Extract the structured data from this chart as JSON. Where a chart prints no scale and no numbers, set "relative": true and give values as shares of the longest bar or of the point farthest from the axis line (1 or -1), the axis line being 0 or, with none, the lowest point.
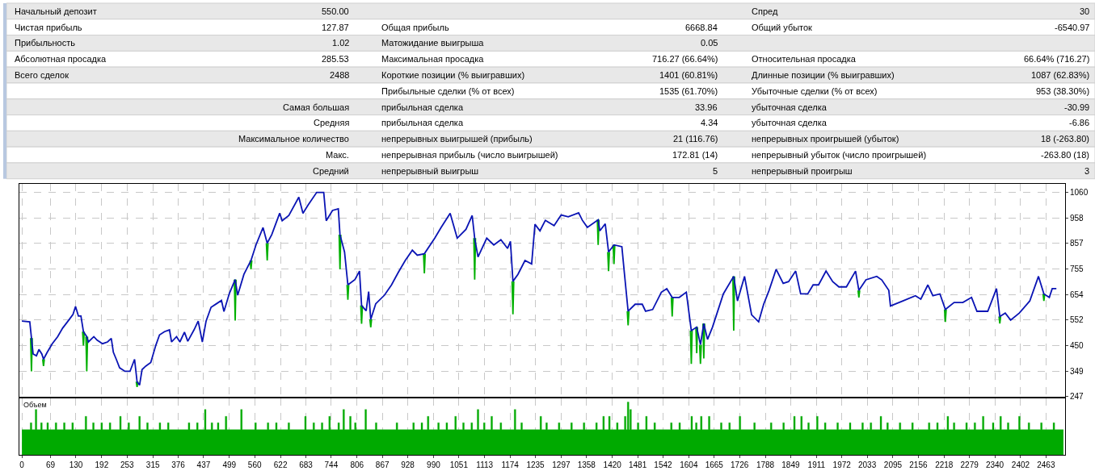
{
  "chart_data": [
    {
      "type": "other",
      "annotations": [
        "Начальный депозит",
        "550.00",
        "Спред",
        "30",
        "Чистая прибыль",
        "127.87",
        "Общая прибыль",
        "6668.84",
        "Общий убыток",
        "-6540.97",
        "Прибыльность",
        "1.02",
        "Матожидание выигрыша",
        "0.05",
        "Абсолютная просадка",
        "285.53",
        "Максимальная просадка",
        "716.27 (66.64%)",
        "Относительная просадка",
        "66.64% (716.27)",
        "Всего сделок",
        "2488",
        "Короткие позиции (% выигравших)",
        "1401 (60.81%)",
        "Длинные позиции (% выигравших)",
        "1087 (62.83%)",
        "Прибыльные сделки (% от всех)",
        "1535 (61.70%)",
        "Убыточные сделки (% от всех)",
        "953 (38.30%)",
        "Самая большая",
        "прибыльная сделка",
        "33.96",
        "убыточная сделка",
        "-30.99",
        "Средняя",
        "прибыльная сделка",
        "4.34",
        "убыточная сделка",
        "-6.86",
        "Максимальное количество",
        "непрерывных выигрышей (прибыль)",
        "21 (116.76)",
        "непрерывных проигрышей (убыток)",
        "18 (-263.80)",
        "Макс.",
        "непрерывная прибыль (число выигрышей)",
        "172.81 (14)",
        "непрерывный убыток (число проигрышей)",
        "-263.80 (18)",
        "Средний",
        "непрерывный выигрыш",
        "5",
        "непрерывный проигрыш",
        "3"
      ]
    },
    {
      "type": "line",
      "xlim": [
        -6,
        2509
      ],
      "ylim": [
        247,
        1095
      ],
      "xticks": [
        0,
        69,
        130,
        192,
        253,
        315,
        376,
        437,
        499,
        560,
        622,
        683,
        744,
        806,
        867,
        928,
        990,
        1051,
        1113,
        1174,
        1235,
        1297,
        1358,
        1420,
        1481,
        1542,
        1604,
        1665,
        1726,
        1788,
        1849,
        1911,
        1972,
        2033,
        2095,
        2156,
        2218,
        2279,
        2340,
        2402,
        2463
      ],
      "yticks": [
        247,
        349,
        450,
        552,
        654,
        755,
        857,
        958,
        1060
      ],
      "grid": true,
      "tick_labels": "y",
      "series": [
        {
          "color": "#00b000",
          "x": [
            21,
            23,
            25,
            null,
            50,
            52,
            54,
            null,
            146,
            148,
            150,
            null,
            154,
            156,
            158,
            null,
            275,
            277,
            279,
            null,
            511,
            513,
            515,
            null,
            549,
            551,
            553,
            null,
            588,
            590,
            592,
            null,
            763,
            765,
            767,
            null,
            782,
            784,
            786,
            null,
            815,
            817,
            819,
            null,
            837,
            839,
            841,
            null,
            966,
            968,
            970,
            null,
            1087,
            1089,
            1091,
            null,
            1179,
            1181,
            1183,
            null,
            1384,
            1386,
            1388,
            null,
            1409,
            1411,
            1413,
            null,
            1422,
            1424,
            1426,
            null,
            1456,
            1458,
            1460,
            null,
            1562,
            1564,
            1566,
            null,
            1608,
            1610,
            1612,
            null,
            1621,
            1623,
            1625,
            null,
            1630,
            1632,
            1634,
            null,
            1638,
            1640,
            1642,
            null,
            1710,
            1712,
            1714,
            null,
            2011,
            2013,
            2015,
            null,
            2219,
            2221,
            2223,
            null,
            2350,
            2352,
            2354,
            null,
            2456,
            2458,
            2460,
            null
          ],
          "values": [
            480,
            348,
            480,
            null,
            396,
            369,
            396,
            null,
            506,
            451,
            506,
            null,
            486,
            348,
            486,
            null,
            307,
            286,
            307,
            null,
            713,
            550,
            713,
            null,
            789,
            754,
            789,
            null,
            858,
            789,
            858,
            null,
            892,
            754,
            892,
            null,
            692,
            633,
            692,
            null,
            610,
            537,
            610,
            null,
            555,
            523,
            555,
            null,
            816,
            738,
            816,
            null,
            878,
            713,
            878,
            null,
            706,
            575,
            706,
            null,
            951,
            851,
            951,
            null,
            823,
            747,
            823,
            null,
            851,
            775,
            851,
            null,
            587,
            531,
            587,
            null,
            642,
            566,
            642,
            null,
            510,
            378,
            510,
            null,
            524,
            420,
            524,
            null,
            454,
            378,
            454,
            null,
            538,
            399,
            538,
            null,
            726,
            510,
            726,
            null,
            670,
            642,
            670,
            null,
            594,
            545,
            594,
            null,
            566,
            538,
            566,
            null,
            656,
            628,
            656,
            null
          ]
        },
        {
          "color": "#0a14b4",
          "x": [
            0,
            19,
            27,
            35,
            41,
            48,
            52,
            61,
            73,
            86,
            98,
            111,
            123,
            129,
            136,
            142,
            148,
            156,
            160,
            173,
            181,
            194,
            206,
            215,
            220,
            227,
            235,
            248,
            260,
            271,
            277,
            283,
            289,
            298,
            310,
            322,
            331,
            343,
            355,
            360,
            372,
            380,
            391,
            399,
            414,
            424,
            434,
            443,
            455,
            468,
            480,
            486,
            499,
            513,
            519,
            534,
            551,
            563,
            580,
            590,
            601,
            620,
            626,
            642,
            666,
            676,
            688,
            709,
            726,
            732,
            747,
            761,
            765,
            776,
            784,
            801,
            812,
            817,
            828,
            834,
            839,
            851,
            872,
            889,
            905,
            922,
            939,
            951,
            968,
            993,
            1008,
            1030,
            1047,
            1068,
            1083,
            1089,
            1097,
            1118,
            1135,
            1152,
            1168,
            1175,
            1181,
            1193,
            1210,
            1226,
            1234,
            1246,
            1259,
            1280,
            1297,
            1314,
            1339,
            1348,
            1360,
            1386,
            1390,
            1403,
            1411,
            1424,
            1443,
            1449,
            1458,
            1475,
            1492,
            1500,
            1517,
            1538,
            1551,
            1564,
            1581,
            1598,
            1610,
            1623,
            1632,
            1640,
            1649,
            1661,
            1687,
            1712,
            1721,
            1738,
            1755,
            1772,
            1784,
            1797,
            1814,
            1831,
            1844,
            1861,
            1873,
            1890,
            1903,
            1916,
            1934,
            1950,
            1965,
            1983,
            2005,
            2013,
            2030,
            2056,
            2068,
            2085,
            2089,
            2119,
            2149,
            2162,
            2179,
            2191,
            2208,
            2221,
            2242,
            2263,
            2284,
            2297,
            2323,
            2344,
            2352,
            2365,
            2378,
            2399,
            2424,
            2445,
            2458,
            2471,
            2478,
            2488
          ],
          "values": [
            548,
            545,
            417,
            410,
            435,
            417,
            396,
            424,
            458,
            486,
            520,
            548,
            575,
            606,
            568,
            568,
            506,
            486,
            465,
            486,
            472,
            458,
            465,
            479,
            424,
            396,
            362,
            348,
            348,
            396,
            307,
            293,
            355,
            369,
            383,
            451,
            493,
            506,
            513,
            465,
            486,
            465,
            504,
            468,
            513,
            548,
            465,
            548,
            603,
            617,
            630,
            586,
            658,
            713,
            651,
            734,
            789,
            851,
            920,
            858,
            892,
            977,
            947,
            968,
            1041,
            977,
            1009,
            1060,
            1060,
            947,
            988,
            995,
            892,
            823,
            692,
            713,
            747,
            610,
            589,
            665,
            555,
            617,
            651,
            692,
            741,
            789,
            830,
            810,
            816,
            878,
            920,
            977,
            878,
            913,
            968,
            878,
            803,
            878,
            851,
            872,
            837,
            865,
            706,
            734,
            789,
            775,
            933,
            907,
            949,
            928,
            970,
            963,
            979,
            949,
            921,
            951,
            907,
            935,
            823,
            851,
            844,
            740,
            587,
            615,
            615,
            587,
            594,
            663,
            677,
            642,
            642,
            663,
            510,
            524,
            454,
            538,
            475,
            524,
            656,
            726,
            628,
            726,
            573,
            545,
            615,
            670,
            754,
            698,
            705,
            747,
            656,
            656,
            692,
            692,
            747,
            705,
            684,
            684,
            747,
            670,
            712,
            726,
            712,
            670,
            608,
            628,
            649,
            635,
            692,
            649,
            656,
            594,
            622,
            622,
            642,
            587,
            587,
            677,
            566,
            580,
            552,
            580,
            628,
            726,
            656,
            642,
            677,
            677
          ]
        }
      ]
    },
    {
      "type": "area",
      "title": "Объем",
      "relative": true,
      "color": "#00aa00",
      "xlim": [
        -6,
        2509
      ],
      "xticks": [
        0,
        69,
        130,
        192,
        253,
        315,
        376,
        437,
        499,
        560,
        622,
        683,
        744,
        806,
        867,
        928,
        990,
        1051,
        1113,
        1174,
        1235,
        1297,
        1358,
        1420,
        1481,
        1542,
        1604,
        1665,
        1726,
        1788,
        1849,
        1911,
        1972,
        2033,
        2095,
        2156,
        2218,
        2279,
        2340,
        2402,
        2463
      ],
      "grid": "x",
      "tick_labels": "x",
      "x": [
        0,
        20,
        24,
        32,
        36,
        45,
        49,
        60,
        64,
        80,
        84,
        100,
        104,
        120,
        124,
        152,
        156,
        170,
        174,
        190,
        194,
        210,
        214,
        235,
        239,
        255,
        259,
        281,
        285,
        300,
        304,
        330,
        334,
        350,
        354,
        400,
        404,
        420,
        424,
        439,
        443,
        455,
        459,
        470,
        474,
        489,
        493,
        526,
        530,
        560,
        564,
        590,
        594,
        610,
        614,
        640,
        644,
        680,
        684,
        700,
        704,
        720,
        724,
        738,
        742,
        760,
        764,
        772,
        776,
        788,
        792,
        800,
        804,
        825,
        829,
        850,
        854,
        900,
        904,
        940,
        944,
        960,
        964,
        975,
        979,
        1000,
        1004,
        1020,
        1024,
        1041,
        1045,
        1060,
        1064,
        1080,
        1084,
        1095,
        1099,
        1110,
        1114,
        1128,
        1132,
        1150,
        1154,
        1184,
        1188,
        1200,
        1204,
        1246,
        1250,
        1260,
        1264,
        1290,
        1294,
        1320,
        1324,
        1350,
        1354,
        1380,
        1384,
        1397,
        1401,
        1411,
        1415,
        1430,
        1434,
        1449,
        1453,
        1456,
        1460,
        1462,
        1466,
        1480,
        1484,
        1500,
        1504,
        1520,
        1524,
        1560,
        1564,
        1580,
        1584,
        1609,
        1613,
        1620,
        1624,
        1632,
        1636,
        1651,
        1655,
        1680,
        1684,
        1700,
        1704,
        1725,
        1729,
        1760,
        1764,
        1800,
        1804,
        1830,
        1834,
        1856,
        1860,
        1873,
        1877,
        1890,
        1894,
        1911,
        1915,
        1930,
        1934,
        1960,
        1964,
        1990,
        1994,
        2020,
        2024,
        2040,
        2044,
        2064,
        2068,
        2080,
        2084,
        2110,
        2114,
        2140,
        2144,
        2180,
        2184,
        2200,
        2204,
        2225,
        2229,
        2240,
        2244,
        2270,
        2274,
        2290,
        2294,
        2310,
        2314,
        2334,
        2338,
        2352,
        2356,
        2370,
        2374,
        2397,
        2401,
        2420,
        2424,
        2450,
        2454,
        2480,
        2484,
        2505
      ],
      "values": [
        0.48,
        0.61,
        0.48,
        0.86,
        0.48,
        0.61,
        0.48,
        0.61,
        0.48,
        0.61,
        0.48,
        0.61,
        0.48,
        0.61,
        0.48,
        0.73,
        0.48,
        0.61,
        0.48,
        0.61,
        0.48,
        0.61,
        0.48,
        0.73,
        0.48,
        0.61,
        0.48,
        0.73,
        0.48,
        0.61,
        0.48,
        0.61,
        0.48,
        0.61,
        0.48,
        0.61,
        0.48,
        0.61,
        0.48,
        0.86,
        0.48,
        0.61,
        0.48,
        0.61,
        0.48,
        0.73,
        0.48,
        0.86,
        0.48,
        0.61,
        0.48,
        0.61,
        0.48,
        0.61,
        0.48,
        0.61,
        0.48,
        0.73,
        0.48,
        0.61,
        0.48,
        0.61,
        0.48,
        0.73,
        0.48,
        0.61,
        0.48,
        0.86,
        0.48,
        0.73,
        0.48,
        0.61,
        0.48,
        0.86,
        0.48,
        0.61,
        0.48,
        0.61,
        0.48,
        0.61,
        0.48,
        0.61,
        0.48,
        0.73,
        0.48,
        0.61,
        0.48,
        0.61,
        0.48,
        0.73,
        0.48,
        0.61,
        0.48,
        0.61,
        0.48,
        0.86,
        0.48,
        0.61,
        0.48,
        0.73,
        0.48,
        0.61,
        0.48,
        0.86,
        0.48,
        0.61,
        0.48,
        0.73,
        0.48,
        0.61,
        0.48,
        0.61,
        0.48,
        0.61,
        0.48,
        0.61,
        0.48,
        0.61,
        0.48,
        0.73,
        0.48,
        0.73,
        0.48,
        0.61,
        0.48,
        0.73,
        0.48,
        1,
        0.48,
        0.86,
        0.48,
        0.61,
        0.48,
        0.73,
        0.48,
        0.61,
        0.48,
        0.61,
        0.48,
        0.61,
        0.48,
        0.73,
        0.48,
        0.61,
        0.48,
        0.73,
        0.48,
        0.73,
        0.48,
        0.61,
        0.48,
        0.61,
        0.48,
        0.73,
        0.48,
        0.61,
        0.48,
        0.61,
        0.48,
        0.61,
        0.48,
        0.73,
        0.48,
        0.73,
        0.48,
        0.61,
        0.48,
        0.73,
        0.48,
        0.61,
        0.48,
        0.61,
        0.48,
        0.61,
        0.48,
        0.61,
        0.48,
        0.61,
        0.48,
        0.73,
        0.48,
        0.61,
        0.48,
        0.61,
        0.48,
        0.61,
        0.48,
        0.61,
        0.48,
        0.61,
        0.48,
        0.73,
        0.48,
        0.61,
        0.48,
        0.61,
        0.48,
        0.61,
        0.48,
        0.73,
        0.48,
        0.61,
        0.48,
        0.73,
        0.48,
        0.61,
        0.48,
        0.73,
        0.48,
        0.61,
        0.48,
        0.61,
        0.48,
        0.61,
        0.48,
        0.48
      ]
    }
  ]
}
